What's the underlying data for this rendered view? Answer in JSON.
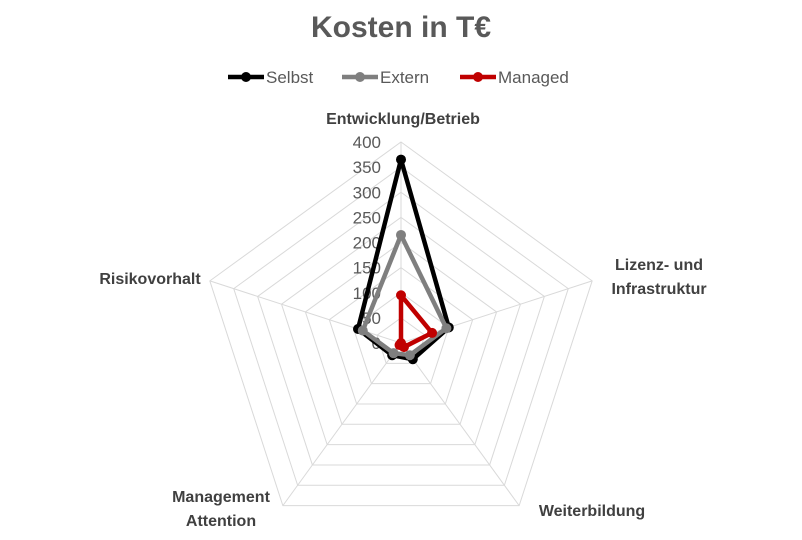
{
  "chart_data": {
    "type": "radar",
    "title": "Kosten in T€",
    "categories": [
      "Entwicklung/Betrieb",
      "Lizenz- und Infrastruktur",
      "Weiterbildung",
      "Management Attention",
      "Risikovorhalt"
    ],
    "category_lines": [
      [
        "Entwicklung/Betrieb"
      ],
      [
        "Lizenz- und",
        "Infrastruktur"
      ],
      [
        "Weiterbildung"
      ],
      [
        "Management",
        "Attention"
      ],
      [
        "Risikovorhalt"
      ]
    ],
    "ticks": [
      "0",
      "50",
      "100",
      "150",
      "200",
      "250",
      "300",
      "350",
      "400"
    ],
    "rlim": [
      0,
      400
    ],
    "grid": true,
    "legend_position": "top",
    "series": [
      {
        "name": "Selbst",
        "color": "#000000",
        "values": [
          365,
          100,
          40,
          30,
          90
        ]
      },
      {
        "name": "Extern",
        "color": "#7f7f7f",
        "values": [
          215,
          95,
          30,
          25,
          80
        ]
      },
      {
        "name": "Managed",
        "color": "#c00000",
        "values": [
          95,
          65,
          10,
          5,
          0
        ]
      }
    ]
  }
}
